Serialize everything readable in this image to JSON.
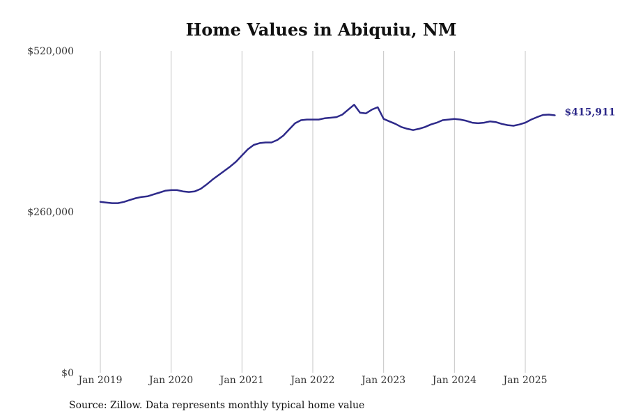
{
  "chart_data": {
    "type": "line",
    "title": "Home Values in Abiquiu, NM",
    "xlabel": "",
    "ylabel": "",
    "ylim": [
      0,
      520000
    ],
    "yticks": [
      {
        "value": 0,
        "label": "$0"
      },
      {
        "value": 260000,
        "label": "$260,000"
      },
      {
        "value": 520000,
        "label": "$520,000"
      }
    ],
    "xticks": [
      {
        "index": 0,
        "label": "Jan 2019"
      },
      {
        "index": 12,
        "label": "Jan 2020"
      },
      {
        "index": 24,
        "label": "Jan 2021"
      },
      {
        "index": 36,
        "label": "Jan 2022"
      },
      {
        "index": 48,
        "label": "Jan 2023"
      },
      {
        "index": 60,
        "label": "Jan 2024"
      },
      {
        "index": 72,
        "label": "Jan 2025"
      }
    ],
    "grid": {
      "vertical": true,
      "horizontal": false
    },
    "line_color": "#2e2a8a",
    "end_label": "$415,911",
    "series": [
      {
        "values": [
          276000,
          275000,
          274000,
          274000,
          276000,
          279000,
          282000,
          284000,
          285000,
          288000,
          291000,
          294000,
          295000,
          295000,
          293000,
          292000,
          293000,
          297000,
          304000,
          312000,
          319000,
          326000,
          333000,
          341000,
          351000,
          361000,
          368000,
          371000,
          372000,
          372000,
          376000,
          383000,
          393000,
          403000,
          408000,
          409000,
          409000,
          409000,
          411000,
          412000,
          413000,
          417000,
          425000,
          433000,
          420000,
          419000,
          425000,
          429000,
          410000,
          406000,
          402000,
          397000,
          394000,
          392000,
          394000,
          397000,
          401000,
          404000,
          408000,
          409000,
          410000,
          409000,
          407000,
          404000,
          403000,
          404000,
          406000,
          405000,
          402000,
          400000,
          399000,
          401000,
          404000,
          409000,
          413000,
          416500,
          417000,
          415911
        ]
      }
    ]
  },
  "source_note": "Source: Zillow. Data represents monthly typical home value"
}
